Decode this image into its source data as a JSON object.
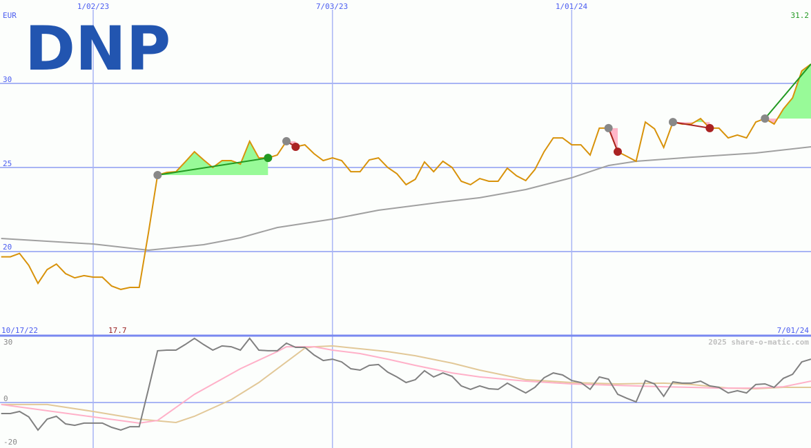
{
  "logo": {
    "text": "DNP",
    "color": "#2255b0"
  },
  "watermark": "2025 share-o-matic.com",
  "colors": {
    "grid": "#a8b4f4",
    "axis_text": "#4a5cf0",
    "price": "#d8920a",
    "moving_average": "#a0a0a0",
    "osc_main": "#808080",
    "osc_pink": "#ffb0c8",
    "osc_tan": "#e2c898",
    "gain_line": "#229922",
    "gain_fill": "#98fa98",
    "loss_line": "#aa2222",
    "loss_fill": "#ffb6c8",
    "high_label": "#229922",
    "low_label": "#992222"
  },
  "chart_data": [
    {
      "type": "line",
      "panel": "price",
      "currency_label": "EUR",
      "ylim": [
        16.8,
        32.5
      ],
      "yticks": [
        20,
        25,
        30
      ],
      "ytick_labels": [
        "20",
        "25",
        "30"
      ],
      "xticks": [
        "2023-01-02",
        "2023-07-03",
        "2024-01-01"
      ],
      "xtick_labels": [
        "1/02/23",
        "7/03/23",
        "1/01/24"
      ],
      "start_label": "10/17/22",
      "end_label": "7/01/24",
      "high_label": "31.2",
      "low_label": "17.7",
      "grid": true,
      "dates": [
        "2022-10-24",
        "2022-10-31",
        "2022-11-07",
        "2022-11-14",
        "2022-11-21",
        "2022-11-28",
        "2022-12-05",
        "2022-12-12",
        "2022-12-19",
        "2022-12-26",
        "2023-01-02",
        "2023-01-09",
        "2023-01-16",
        "2023-01-23",
        "2023-01-30",
        "2023-02-06",
        "2023-02-13",
        "2023-02-20",
        "2023-02-27",
        "2023-03-06",
        "2023-03-13",
        "2023-03-20",
        "2023-03-27",
        "2023-04-03",
        "2023-04-10",
        "2023-04-17",
        "2023-04-24",
        "2023-05-01",
        "2023-05-08",
        "2023-05-15",
        "2023-05-22",
        "2023-05-29",
        "2023-06-05",
        "2023-06-12",
        "2023-06-19",
        "2023-06-26",
        "2023-07-03",
        "2023-07-10",
        "2023-07-17",
        "2023-07-24",
        "2023-07-31",
        "2023-08-07",
        "2023-08-14",
        "2023-08-21",
        "2023-08-28",
        "2023-09-04",
        "2023-09-11",
        "2023-09-18",
        "2023-09-25",
        "2023-10-02",
        "2023-10-09",
        "2023-10-16",
        "2023-10-23",
        "2023-10-30",
        "2023-11-06",
        "2023-11-13",
        "2023-11-20",
        "2023-11-27",
        "2023-12-04",
        "2023-12-11",
        "2023-12-18",
        "2023-12-25",
        "2024-01-01",
        "2024-01-08",
        "2024-01-15",
        "2024-01-22",
        "2024-01-29",
        "2024-02-05",
        "2024-02-12",
        "2024-02-19",
        "2024-02-26",
        "2024-03-04",
        "2024-03-11",
        "2024-03-18",
        "2024-03-25",
        "2024-04-01",
        "2024-04-08",
        "2024-04-15",
        "2024-04-22",
        "2024-04-29",
        "2024-05-06",
        "2024-05-13",
        "2024-05-20",
        "2024-05-27",
        "2024-06-03",
        "2024-06-10",
        "2024-06-17",
        "2024-06-24",
        "2024-07-01"
      ],
      "price": [
        19.69,
        19.69,
        19.89,
        19.18,
        18.11,
        18.93,
        19.26,
        18.69,
        18.44,
        18.57,
        18.48,
        18.48,
        17.95,
        17.75,
        17.87,
        17.87,
        21.1,
        24.55,
        24.71,
        24.75,
        25.33,
        25.94,
        25.45,
        25.0,
        25.41,
        25.41,
        25.2,
        26.56,
        25.57,
        25.57,
        25.74,
        26.56,
        26.23,
        26.35,
        25.82,
        25.41,
        25.57,
        25.41,
        24.75,
        24.75,
        25.45,
        25.57,
        25.0,
        24.63,
        23.98,
        24.3,
        25.33,
        24.75,
        25.37,
        25.0,
        24.18,
        23.98,
        24.34,
        24.18,
        24.18,
        24.96,
        24.51,
        24.22,
        24.88,
        25.94,
        26.76,
        26.76,
        26.35,
        26.35,
        25.74,
        27.34,
        27.34,
        25.94,
        25.66,
        25.37,
        27.7,
        27.3,
        26.19,
        27.7,
        27.58,
        27.58,
        27.91,
        27.34,
        27.34,
        26.76,
        26.93,
        26.76,
        27.7,
        27.91,
        27.58,
        28.48,
        29.14,
        30.74,
        31.15
      ],
      "moving_average": [
        [
          "2022-10-24",
          20.78
        ],
        [
          "2023-01-02",
          20.45
        ],
        [
          "2023-02-13",
          20.08
        ],
        [
          "2023-03-27",
          20.41
        ],
        [
          "2023-04-24",
          20.82
        ],
        [
          "2023-05-22",
          21.43
        ],
        [
          "2023-07-03",
          21.93
        ],
        [
          "2023-08-07",
          22.46
        ],
        [
          "2023-09-25",
          22.95
        ],
        [
          "2023-10-23",
          23.2
        ],
        [
          "2023-11-27",
          23.69
        ],
        [
          "2024-01-01",
          24.39
        ],
        [
          "2024-01-29",
          25.12
        ],
        [
          "2024-02-19",
          25.37
        ],
        [
          "2024-04-01",
          25.61
        ],
        [
          "2024-05-20",
          25.86
        ],
        [
          "2024-07-01",
          26.23
        ]
      ],
      "trades": [
        {
          "open": "2023-02-20",
          "close": "2023-05-15",
          "result": "gain"
        },
        {
          "open": "2023-05-29",
          "close": "2023-06-05",
          "result": "loss"
        },
        {
          "open": "2024-01-29",
          "close": "2024-02-05",
          "result": "loss"
        },
        {
          "open": "2024-03-18",
          "close": "2024-04-15",
          "result": "loss"
        },
        {
          "open": "2024-05-27",
          "close": "2024-07-01",
          "result": "gain",
          "still_open": true
        }
      ]
    },
    {
      "type": "line",
      "panel": "oscillator",
      "ylim": [
        -22,
        33
      ],
      "yticks": [
        -20,
        0,
        30
      ],
      "ytick_labels": [
        "-20",
        "0",
        "30"
      ],
      "grid": true,
      "main": [
        -5.5,
        -5.5,
        -4.5,
        -7.2,
        -13.8,
        -8.3,
        -6.9,
        -10.7,
        -11.4,
        -10.3,
        -10.3,
        -10.3,
        -12.4,
        -13.8,
        -12.1,
        -12.1,
        6.6,
        25.9,
        26.2,
        26.2,
        29.0,
        32.1,
        29.0,
        26.2,
        28.3,
        27.9,
        26.2,
        32.1,
        26.2,
        25.9,
        25.9,
        29.7,
        27.6,
        27.6,
        23.8,
        21.0,
        21.7,
        20.3,
        16.9,
        16.2,
        18.6,
        19.0,
        15.2,
        12.8,
        10.0,
        11.4,
        15.9,
        12.8,
        14.8,
        13.1,
        8.3,
        6.6,
        8.3,
        6.9,
        6.6,
        9.7,
        7.2,
        4.8,
        7.6,
        12.4,
        14.8,
        13.8,
        11.0,
        10.0,
        6.6,
        12.8,
        11.7,
        4.1,
        2.1,
        0.3,
        11.0,
        9.3,
        3.1,
        10.3,
        9.7,
        9.7,
        10.7,
        8.3,
        7.6,
        4.8,
        5.9,
        4.8,
        9.0,
        9.3,
        7.6,
        12.1,
        14.1,
        20.3,
        21.7
      ],
      "pink": [
        [
          "2022-10-24",
          -1.0
        ],
        [
          "2023-01-02",
          -7.2
        ],
        [
          "2023-02-06",
          -10.3
        ],
        [
          "2023-02-20",
          -9.0
        ],
        [
          "2023-03-20",
          4.1
        ],
        [
          "2023-04-24",
          16.9
        ],
        [
          "2023-05-22",
          25.5
        ],
        [
          "2023-05-29",
          27.9
        ],
        [
          "2023-06-19",
          27.9
        ],
        [
          "2023-07-03",
          26.2
        ],
        [
          "2023-07-24",
          24.5
        ],
        [
          "2023-08-14",
          21.7
        ],
        [
          "2023-09-04",
          18.6
        ],
        [
          "2023-10-02",
          14.8
        ],
        [
          "2023-10-23",
          12.8
        ],
        [
          "2023-11-27",
          10.7
        ],
        [
          "2024-01-01",
          9.3
        ],
        [
          "2024-02-05",
          8.6
        ],
        [
          "2024-03-11",
          7.9
        ],
        [
          "2024-04-01",
          7.6
        ],
        [
          "2024-04-22",
          7.2
        ],
        [
          "2024-05-20",
          7.2
        ],
        [
          "2024-06-10",
          7.9
        ],
        [
          "2024-07-01",
          10.7
        ]
      ],
      "tan": [
        [
          "2022-10-24",
          -1.0
        ],
        [
          "2022-11-28",
          -1.0
        ],
        [
          "2023-01-02",
          -4.5
        ],
        [
          "2023-02-06",
          -8.3
        ],
        [
          "2023-03-06",
          -10.0
        ],
        [
          "2023-03-20",
          -6.9
        ],
        [
          "2023-04-17",
          1.4
        ],
        [
          "2023-05-08",
          10.0
        ],
        [
          "2023-06-12",
          27.2
        ],
        [
          "2023-06-19",
          27.9
        ],
        [
          "2023-07-03",
          28.3
        ],
        [
          "2023-07-24",
          26.9
        ],
        [
          "2023-08-14",
          25.5
        ],
        [
          "2023-09-04",
          23.4
        ],
        [
          "2023-10-02",
          19.7
        ],
        [
          "2023-10-23",
          16.2
        ],
        [
          "2023-11-27",
          11.4
        ],
        [
          "2024-01-01",
          10.0
        ],
        [
          "2024-02-05",
          9.3
        ],
        [
          "2024-03-11",
          9.7
        ],
        [
          "2024-04-01",
          9.0
        ],
        [
          "2024-04-29",
          7.2
        ],
        [
          "2024-05-20",
          6.9
        ],
        [
          "2024-06-10",
          7.6
        ],
        [
          "2024-07-01",
          7.6
        ]
      ]
    }
  ]
}
